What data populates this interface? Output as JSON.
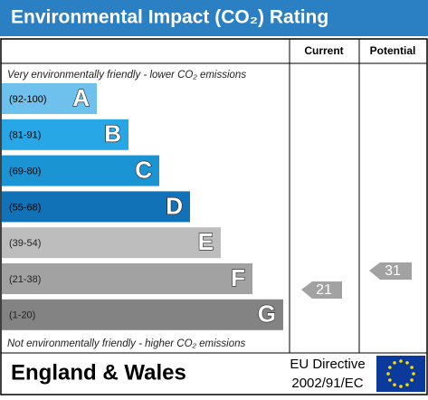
{
  "title": "Environmental Impact (CO₂) Rating",
  "headers": [
    "Current",
    "Potential"
  ],
  "top_note": "Very environmentally friendly - lower CO₂ emissions",
  "bottom_note": "Not environmentally friendly - higher CO₂ emissions",
  "bands": [
    {
      "range": "(92-100)",
      "letter": "A",
      "color": "#6dc1ec"
    },
    {
      "range": "(81-91)",
      "letter": "B",
      "color": "#27a7e6"
    },
    {
      "range": "(69-80)",
      "letter": "C",
      "color": "#1b94d4"
    },
    {
      "range": "(55-68)",
      "letter": "D",
      "color": "#1272b8"
    },
    {
      "range": "(39-54)",
      "letter": "E",
      "color": "#bdbdbd"
    },
    {
      "range": "(21-38)",
      "letter": "F",
      "color": "#a2a2a2"
    },
    {
      "range": "(1-20)",
      "letter": "G",
      "color": "#838383"
    }
  ],
  "current": "21",
  "potential": "31",
  "footer": {
    "region": "England & Wales",
    "directive_line1": "EU Directive",
    "directive_line2": "2002/91/EC"
  }
}
